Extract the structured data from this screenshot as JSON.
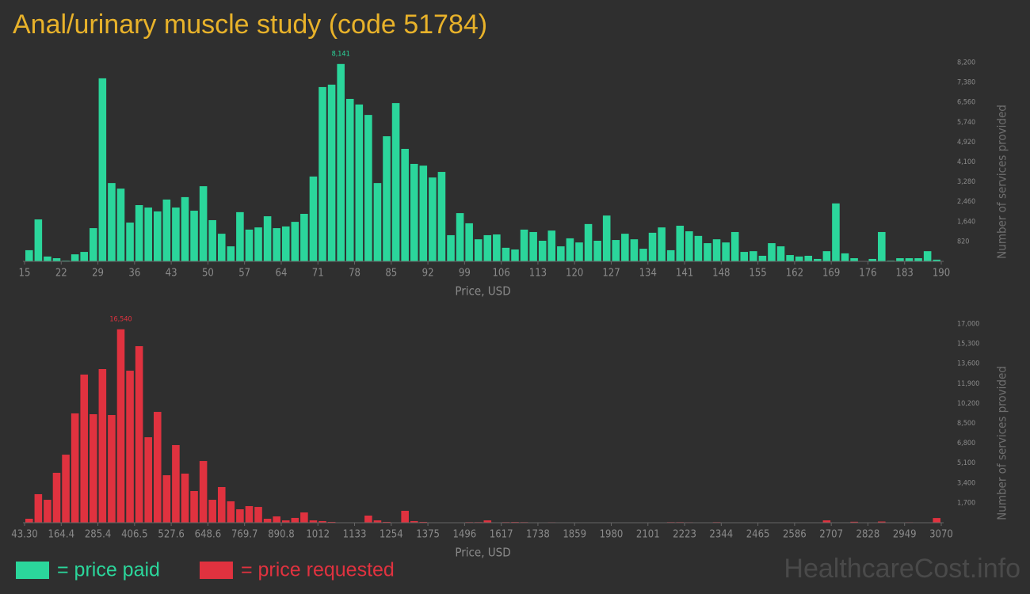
{
  "header": {
    "title": "Anal/urinary muscle study (code 51784)",
    "watermark": "HealthcareCost.info"
  },
  "chart_data": [
    {
      "type": "histogram",
      "x_label": "Price, USD",
      "y_label": "Number of services provided",
      "bins": [
        15,
        16.75,
        18.5,
        20.25,
        22,
        23.75,
        25.5,
        27.25,
        29,
        30.75,
        32.5,
        34.25,
        36,
        37.75,
        39.5,
        41.25,
        43,
        44.75,
        46.5,
        48.25,
        50,
        51.75,
        53.5,
        55.25,
        57,
        58.75,
        60.5,
        62.25,
        64,
        65.75,
        67.5,
        69.25,
        71,
        72.75,
        74.5,
        76.25,
        78,
        79.75,
        81.5,
        83.25,
        85,
        86.75,
        88.5,
        90.25,
        92,
        93.75,
        95.5,
        97.25,
        99,
        100.75,
        102.5,
        104.25,
        106,
        107.75,
        109.5,
        111.25,
        113,
        114.75,
        116.5,
        118.25,
        120,
        121.75,
        123.5,
        125.25,
        127,
        128.75,
        130.5,
        132.25,
        134,
        135.75,
        137.5,
        139.25,
        141,
        142.75,
        144.5,
        146.25,
        148,
        149.75,
        151.5,
        153.25,
        155,
        156.75,
        158.5,
        160.25,
        162,
        163.75,
        165.5,
        167.25,
        169,
        170.75,
        172.5,
        174.25,
        176,
        177.75,
        179.5,
        181.25,
        183,
        184.75,
        186.5,
        188.25,
        190
      ],
      "series": [
        {
          "name": "= price paid",
          "color": "#2bd69b",
          "values": [
            460,
            1730,
            200,
            130,
            30,
            290,
            390,
            1370,
            7550,
            3230,
            3000,
            1600,
            2320,
            2220,
            2060,
            2550,
            2220,
            2650,
            2090,
            3100,
            1700,
            1140,
            620,
            2030,
            1310,
            1400,
            1860,
            1370,
            1440,
            1630,
            1960,
            3500,
            7190,
            7290,
            8141,
            6700,
            6470,
            6040,
            3230,
            5160,
            6530,
            4640,
            4020,
            3950,
            3460,
            3690,
            1080,
            1990,
            1570,
            910,
            1080,
            1110,
            560,
            490,
            1310,
            1210,
            850,
            1270,
            620,
            950,
            780,
            1540,
            850,
            1890,
            880,
            1140,
            910,
            520,
            1180,
            1400,
            460,
            1470,
            1240,
            1050,
            750,
            910,
            780,
            1210,
            390,
            420,
            230,
            750,
            620,
            260,
            200,
            230,
            100,
            420,
            2390,
            330,
            130,
            0,
            100,
            1210,
            30,
            130,
            130,
            130,
            420,
            70
          ],
          "value_labels": [
            null,
            null,
            null,
            null,
            null,
            null,
            null,
            null,
            null,
            null,
            null,
            null,
            null,
            null,
            null,
            null,
            null,
            null,
            null,
            null,
            null,
            null,
            null,
            null,
            null,
            null,
            null,
            null,
            null,
            null,
            null,
            null,
            null,
            null,
            "8,141",
            null,
            null,
            null,
            null,
            null,
            null,
            null,
            null,
            null,
            null,
            null,
            null,
            null,
            null,
            null,
            null,
            null,
            null,
            null,
            null,
            null,
            null,
            null,
            null,
            null,
            null,
            null,
            null,
            null,
            null,
            null,
            null,
            null,
            null,
            null,
            null,
            null,
            null,
            null,
            null,
            null,
            null,
            null,
            null,
            null,
            null,
            null,
            null,
            null,
            null,
            null,
            null,
            null,
            null,
            null,
            null,
            null,
            null,
            null,
            null,
            null,
            null,
            null,
            null,
            null
          ]
        }
      ],
      "xlim": [
        15,
        190
      ],
      "xticks": [
        15,
        22,
        29,
        36,
        43,
        50,
        57,
        64,
        71,
        78,
        85,
        92,
        99,
        106,
        113,
        120,
        127,
        134,
        141,
        148,
        155,
        162,
        169,
        176,
        183,
        190
      ],
      "ylim": [
        0,
        8200
      ],
      "yticks": [
        820,
        {
          "value": 1640,
          "label": "1,640"
        },
        {
          "value": 2460,
          "label": "2,460"
        },
        {
          "value": 3280,
          "label": "3,280"
        },
        {
          "value": 4100,
          "label": "4,100"
        },
        {
          "value": 4920,
          "label": "4,920"
        },
        {
          "value": 5740,
          "label": "5,740"
        },
        {
          "value": 6560,
          "label": "6,560"
        },
        {
          "value": 7380,
          "label": "7,380"
        },
        {
          "value": 8200,
          "label": "8,200"
        }
      ],
      "grid": false
    },
    {
      "type": "histogram",
      "x_label": "Price, USD",
      "y_label": "Number of services provided",
      "bins": [
        43.3,
        73.57,
        103.83,
        134.1,
        164.37,
        194.64,
        224.9,
        255.17,
        285.44,
        315.7,
        345.97,
        376.24,
        406.5,
        436.77,
        467.04,
        497.31,
        527.57,
        557.84,
        588.11,
        618.37,
        648.64,
        678.91,
        709.17,
        739.44,
        769.71,
        799.98,
        830.24,
        860.51,
        890.78,
        921.04,
        951.31,
        981.58,
        1011.84,
        1042.11,
        1072.38,
        1102.65,
        1132.91,
        1163.18,
        1193.45,
        1223.71,
        1253.98,
        1284.25,
        1314.51,
        1344.78,
        1375.05,
        1405.32,
        1435.58,
        1465.85,
        1496.12,
        1526.38,
        1556.65,
        1586.92,
        1617.18,
        1647.45,
        1677.72,
        1707.99,
        1738.25,
        1768.52,
        1798.79,
        1829.05,
        1859.32,
        1889.59,
        1919.85,
        1950.12,
        1980.39,
        2010.66,
        2040.92,
        2071.19,
        2101.46,
        2131.72,
        2161.99,
        2192.26,
        2222.52,
        2252.79,
        2283.06,
        2313.33,
        2343.59,
        2373.86,
        2404.13,
        2434.39,
        2464.66,
        2494.93,
        2525.19,
        2555.46,
        2585.73,
        2616.0,
        2646.26,
        2676.53,
        2706.8,
        2737.06,
        2767.33,
        2797.6,
        2827.86,
        2858.13,
        2888.4,
        2918.67,
        2948.93,
        2979.2,
        3009.47,
        3039.73,
        3070
      ],
      "series": [
        {
          "name": "= price requested",
          "color": "#e0323f",
          "values": [
            340,
            2440,
            1960,
            4270,
            5820,
            9350,
            12670,
            9280,
            13140,
            9210,
            16540,
            13000,
            15100,
            7310,
            9480,
            4060,
            6640,
            4200,
            2710,
            5280,
            1960,
            3050,
            1830,
            1150,
            1420,
            1350,
            340,
            540,
            200,
            410,
            880,
            200,
            140,
            70,
            20,
            20,
            30,
            610,
            200,
            70,
            20,
            1020,
            140,
            70,
            20,
            20,
            20,
            20,
            50,
            50,
            200,
            20,
            50,
            60,
            50,
            20,
            20,
            40,
            20,
            20,
            20,
            20,
            20,
            20,
            20,
            20,
            20,
            20,
            20,
            20,
            50,
            50,
            40,
            20,
            20,
            50,
            20,
            20,
            20,
            20,
            20,
            20,
            20,
            20,
            20,
            20,
            20,
            200,
            20,
            20,
            80,
            20,
            20,
            100,
            20,
            20,
            40,
            20,
            20,
            400
          ],
          "value_labels": [
            null,
            null,
            null,
            null,
            null,
            null,
            null,
            null,
            null,
            null,
            "16,540",
            null,
            null,
            null,
            null,
            null,
            null,
            null,
            null,
            null,
            null,
            null,
            null,
            null,
            null,
            null,
            null,
            null,
            null,
            null,
            null,
            null,
            null,
            null,
            null,
            null,
            null,
            null,
            null,
            null,
            null,
            null,
            null,
            null,
            null,
            null,
            null,
            null,
            null,
            null,
            null,
            null,
            null,
            null,
            null,
            null,
            null,
            null,
            null,
            null,
            null,
            null,
            null,
            null,
            null,
            null,
            null,
            null,
            null,
            null,
            null,
            null,
            null,
            null,
            null,
            null,
            null,
            null,
            null,
            null,
            null,
            null,
            null,
            null,
            null,
            null,
            null,
            null,
            null,
            null,
            null,
            null,
            null,
            null,
            null,
            null,
            null,
            null,
            null,
            null
          ]
        }
      ],
      "xlim": [
        43.3,
        3070
      ],
      "xticks": [
        {
          "value": 43.3,
          "label": "43.30"
        },
        {
          "value": 164.37,
          "label": "164.4"
        },
        {
          "value": 285.44,
          "label": "285.4"
        },
        406.5,
        {
          "value": 527.57,
          "label": "527.6"
        },
        {
          "value": 648.64,
          "label": "648.6"
        },
        {
          "value": 769.71,
          "label": "769.7"
        },
        {
          "value": 890.78,
          "label": "890.8"
        },
        {
          "value": 1011.84,
          "label": "1012"
        },
        {
          "value": 1132.91,
          "label": "1133"
        },
        {
          "value": 1253.98,
          "label": "1254"
        },
        {
          "value": 1375.05,
          "label": "1375"
        },
        {
          "value": 1496.12,
          "label": "1496"
        },
        {
          "value": 1617.18,
          "label": "1617"
        },
        {
          "value": 1738.25,
          "label": "1738"
        },
        {
          "value": 1859.32,
          "label": "1859"
        },
        {
          "value": 1980.39,
          "label": "1980"
        },
        {
          "value": 2101.46,
          "label": "2101"
        },
        {
          "value": 2222.52,
          "label": "2223"
        },
        {
          "value": 2343.59,
          "label": "2344"
        },
        {
          "value": 2464.66,
          "label": "2465"
        },
        {
          "value": 2585.73,
          "label": "2586"
        },
        {
          "value": 2706.8,
          "label": "2707"
        },
        {
          "value": 2827.86,
          "label": "2828"
        },
        {
          "value": 2948.93,
          "label": "2949"
        },
        3070
      ],
      "ylim": [
        0,
        17000
      ],
      "yticks": [
        {
          "value": 1700,
          "label": "1,700"
        },
        {
          "value": 3400,
          "label": "3,400"
        },
        {
          "value": 5100,
          "label": "5,100"
        },
        {
          "value": 6800,
          "label": "6,800"
        },
        {
          "value": 8500,
          "label": "8,500"
        },
        {
          "value": 10200,
          "label": "10,200"
        },
        {
          "value": 11900,
          "label": "11,900"
        },
        {
          "value": 13600,
          "label": "13,600"
        },
        {
          "value": 15300,
          "label": "15,300"
        },
        {
          "value": 17000,
          "label": "17,000"
        }
      ],
      "grid": false
    }
  ]
}
